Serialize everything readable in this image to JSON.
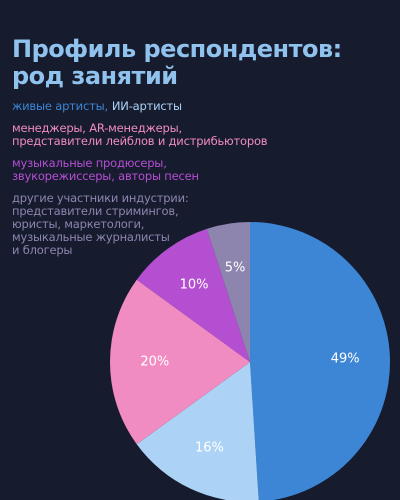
{
  "chart_data": {
    "type": "pie",
    "title": "Профиль респондентов:\nрод занятий",
    "categories": [
      "живые артисты,",
      "ИИ-артисты",
      "менеджеры, AR-менеджеры,\nпредставители лейблов и дистрибьюторов",
      "музыкальные продюсеры,\nзвукорежиссеры, авторы песен",
      "другие участники индустрии:\nпредставители стримингов,\nюристы, маркетологи,\nмузыкальные журналисты\nи блогеры"
    ],
    "values": [
      49,
      16,
      20,
      10,
      5
    ],
    "value_labels": [
      "49%",
      "16%",
      "20%",
      "10%",
      "5%"
    ],
    "colors": [
      "#3d86d6",
      "#acd3f6",
      "#f18cc2",
      "#b54fd2",
      "#8d85ae"
    ]
  }
}
